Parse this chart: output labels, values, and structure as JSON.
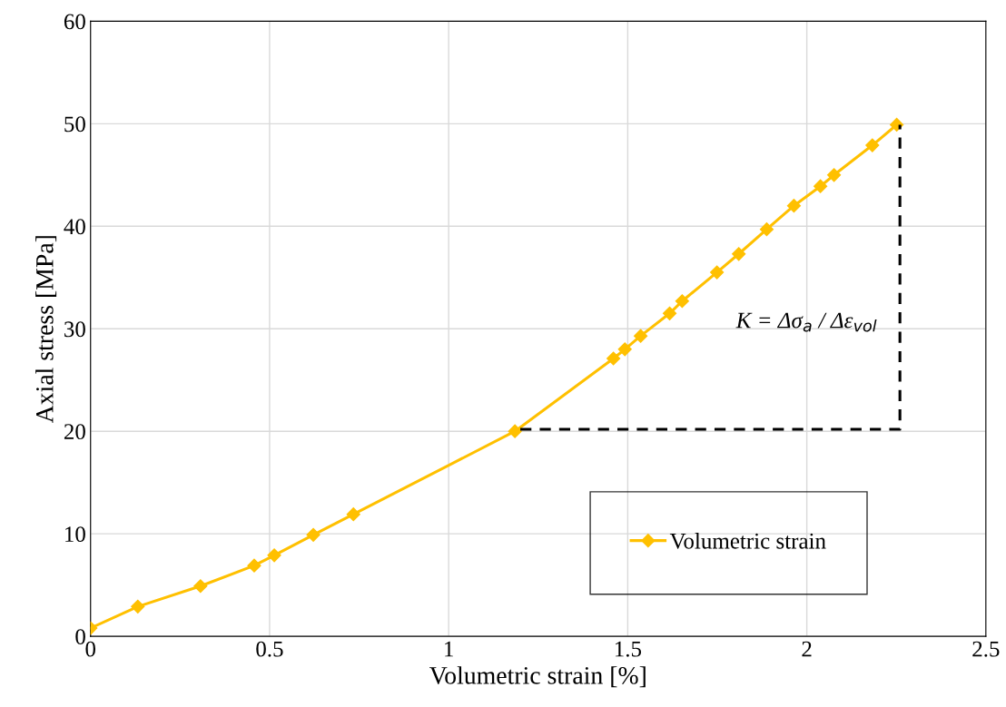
{
  "chart_data": {
    "type": "line",
    "xlabel": "Volumetric strain [%]",
    "ylabel": "Axial stress [MPa]",
    "xlim": [
      0,
      2.5
    ],
    "xticks": [
      0,
      0.5,
      1,
      1.5,
      2,
      2.5
    ],
    "ylim": [
      0,
      60
    ],
    "yticks": [
      0,
      10,
      20,
      30,
      40,
      50,
      60
    ],
    "grid": true,
    "legend": "bottom right",
    "marker": "diamond",
    "line_style": "solid",
    "series": [
      {
        "name": "Volumetric strain",
        "color": "#ffc000",
        "x": [
          0,
          0.132,
          0.307,
          0.457,
          0.513,
          0.622,
          0.734,
          1.185,
          1.46,
          1.492,
          1.536,
          1.617,
          1.652,
          1.749,
          1.81,
          1.888,
          1.964,
          2.038,
          2.076,
          2.183,
          2.251
        ],
        "values": [
          0.8,
          2.9,
          4.9,
          6.9,
          7.9,
          9.9,
          11.9,
          20.0,
          27.1,
          28.0,
          29.3,
          31.5,
          32.7,
          35.5,
          37.3,
          39.7,
          42.0,
          43.9,
          45.0,
          47.9,
          49.9
        ]
      },
      {
        "type": "line",
        "color": "#000000",
        "line_style": "dashed",
        "marker": "none",
        "x": [
          1.2,
          2.26,
          2.26
        ],
        "values": [
          20.2,
          20.2,
          49.9
        ]
      }
    ],
    "annotations": [
      "K = Δσ$_{a}$ / Δε$_{vol}$"
    ]
  }
}
